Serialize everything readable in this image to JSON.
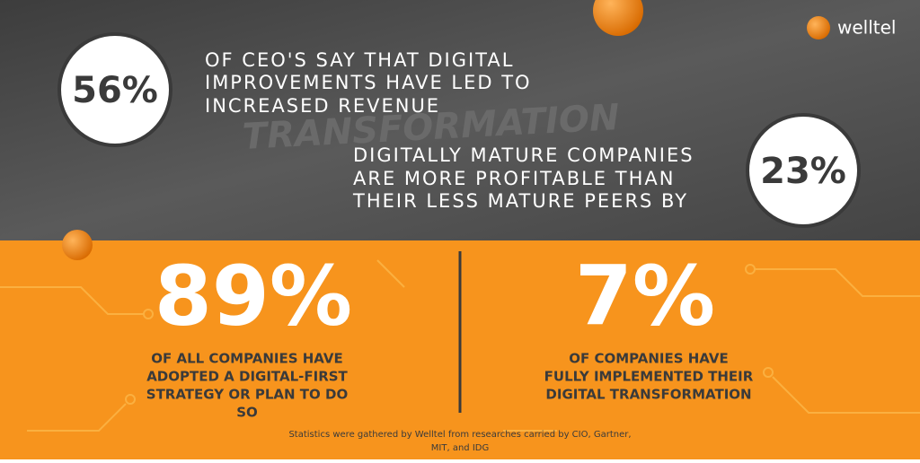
{
  "logo": "welltel",
  "stats": [
    {
      "value": "56%",
      "lines": [
        "OF CEO'S SAY THAT DIGITAL",
        "IMPROVEMENTS HAVE LED TO",
        "INCREASED REVENUE"
      ]
    },
    {
      "value": "23%",
      "lines": [
        "DIGITALLY MATURE COMPANIES",
        "ARE MORE PROFITABLE THAN",
        "THEIR LESS MATURE PEERS BY"
      ]
    },
    {
      "value": "89%",
      "lines": [
        "OF ALL COMPANIES HAVE",
        "ADOPTED A DIGITAL-FIRST",
        "STRATEGY OR PLAN TO DO",
        "SO"
      ]
    },
    {
      "value": "7%",
      "lines": [
        "OF COMPANIES HAVE",
        "FULLY IMPLEMENTED THEIR",
        "DIGITAL TRANSFORMATION"
      ]
    }
  ],
  "footnote": [
    "Statistics were gathered by Welltel from researches carried by CIO, Gartner,",
    "MIT, and IDG"
  ]
}
